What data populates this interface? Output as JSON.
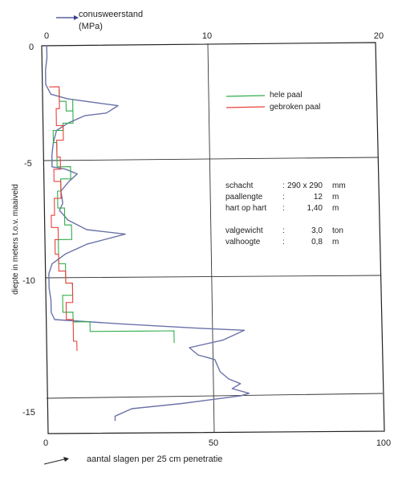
{
  "chart_data": {
    "type": "line",
    "top_axis": {
      "label_line1": "conusweerstand",
      "label_line2": "(MPa)",
      "ticks": [
        "0",
        "10",
        "20"
      ],
      "range": [
        0,
        20
      ]
    },
    "bottom_axis": {
      "label": "aantal slagen per 25 cm penetratie",
      "ticks": [
        "0",
        "50",
        "100"
      ],
      "range": [
        0,
        100
      ]
    },
    "y_axis": {
      "label": "diepte in meters t.o.v. maaiveld",
      "ticks": [
        "0",
        "-5",
        "-10",
        "-15"
      ],
      "range": [
        0,
        -16
      ]
    },
    "grid": true,
    "legend": {
      "position": "top-right",
      "entries": [
        {
          "label": "hele paal",
          "color": "#2fae4a"
        },
        {
          "label": "gebroken paal",
          "color": "#e8413c"
        }
      ]
    },
    "info_rows": [
      {
        "label": "schacht",
        "sep": ":",
        "value": "290 x 290",
        "unit": "mm"
      },
      {
        "label": "paallengte",
        "sep": ":",
        "value": "12",
        "unit": "m"
      },
      {
        "label": "hart op hart",
        "sep": ":",
        "value": "1,40",
        "unit": "m"
      },
      {
        "label": "valgewicht",
        "sep": ":",
        "value": "3,0",
        "unit": "ton"
      },
      {
        "label": "valhoogte",
        "sep": ":",
        "value": "0,8",
        "unit": "m"
      }
    ],
    "series": [
      {
        "axis": "top",
        "color": "#6a72a8",
        "points": [
          [
            0.3,
            0
          ],
          [
            0.3,
            -0.5
          ],
          [
            0.2,
            -1.0
          ],
          [
            0.2,
            -1.6
          ],
          [
            0.5,
            -2.0
          ],
          [
            1.5,
            -2.2
          ],
          [
            3.5,
            -2.4
          ],
          [
            4.5,
            -2.5
          ],
          [
            3.8,
            -2.8
          ],
          [
            2.5,
            -2.9
          ],
          [
            1.5,
            -3.2
          ],
          [
            0.8,
            -3.5
          ],
          [
            0.6,
            -4.0
          ],
          [
            0.5,
            -4.5
          ],
          [
            0.5,
            -5.0
          ],
          [
            1.3,
            -5.1
          ],
          [
            2.0,
            -5.3
          ],
          [
            1.5,
            -5.6
          ],
          [
            1.0,
            -6.0
          ],
          [
            1.1,
            -6.5
          ],
          [
            0.9,
            -6.8
          ],
          [
            1.4,
            -7.2
          ],
          [
            2.5,
            -7.6
          ],
          [
            4.8,
            -7.8
          ],
          [
            2.5,
            -8.2
          ],
          [
            1.2,
            -8.6
          ],
          [
            0.4,
            -9.0
          ],
          [
            0.2,
            -9.4
          ],
          [
            0.2,
            -10.0
          ],
          [
            0.3,
            -10.5
          ],
          [
            0.3,
            -11.0
          ],
          [
            0.5,
            -11.3
          ],
          [
            4.5,
            -11.5
          ],
          [
            9.0,
            -11.7
          ],
          [
            11.8,
            -11.8
          ],
          [
            10.5,
            -12.2
          ],
          [
            8.5,
            -12.5
          ],
          [
            9.0,
            -12.8
          ],
          [
            10.0,
            -13.0
          ],
          [
            10.3,
            -13.5
          ],
          [
            10.8,
            -13.8
          ],
          [
            11.5,
            -14.0
          ],
          [
            11.0,
            -14.2
          ],
          [
            12.0,
            -14.4
          ],
          [
            11.5,
            -14.5
          ],
          [
            8.0,
            -14.8
          ],
          [
            5.0,
            -15.0
          ],
          [
            4.0,
            -15.3
          ],
          [
            4.0,
            -15.5
          ]
        ]
      },
      {
        "axis": "bottom",
        "color": "#2fae4a",
        "points": [
          [
            5,
            -1.8
          ],
          [
            5,
            -2.3
          ],
          [
            7,
            -2.3
          ],
          [
            7,
            -2.7
          ],
          [
            9,
            -2.7
          ],
          [
            9,
            -2.2
          ],
          [
            9,
            -3.2
          ],
          [
            6,
            -3.2
          ],
          [
            6,
            -3.5
          ],
          [
            3,
            -3.5
          ],
          [
            3,
            -4.0
          ],
          [
            4,
            -4.0
          ],
          [
            4,
            -5.0
          ],
          [
            8,
            -5.0
          ],
          [
            8,
            -5.5
          ],
          [
            5,
            -5.5
          ],
          [
            5,
            -6.0
          ],
          [
            4,
            -6.0
          ],
          [
            4,
            -6.7
          ],
          [
            6,
            -6.7
          ],
          [
            6,
            -7.4
          ],
          [
            8,
            -7.4
          ],
          [
            8,
            -8.0
          ],
          [
            4,
            -8.0
          ],
          [
            4,
            -9.0
          ],
          [
            6,
            -9.0
          ],
          [
            6,
            -9.8
          ],
          [
            8,
            -9.8
          ],
          [
            8,
            -10.3
          ],
          [
            5,
            -10.3
          ],
          [
            5,
            -11.0
          ],
          [
            8,
            -11.0
          ],
          [
            8,
            -11.4
          ],
          [
            13,
            -11.4
          ],
          [
            13,
            -11.8
          ],
          [
            29,
            -11.8
          ],
          [
            38,
            -11.8
          ],
          [
            38,
            -12.3
          ]
        ]
      },
      {
        "axis": "bottom",
        "color": "#e8413c",
        "points": [
          [
            2,
            -1.7
          ],
          [
            5,
            -1.7
          ],
          [
            5,
            -2.6
          ],
          [
            4,
            -2.6
          ],
          [
            4,
            -3.3
          ],
          [
            6,
            -3.3
          ],
          [
            6,
            -3.9
          ],
          [
            4,
            -3.9
          ],
          [
            4,
            -4.6
          ],
          [
            5,
            -4.6
          ],
          [
            5,
            -5.1
          ],
          [
            3,
            -5.1
          ],
          [
            3,
            -5.6
          ],
          [
            5,
            -5.6
          ],
          [
            5,
            -6.3
          ],
          [
            3,
            -6.3
          ],
          [
            3,
            -7.0
          ],
          [
            2,
            -7.0
          ],
          [
            2,
            -7.5
          ],
          [
            4,
            -7.5
          ],
          [
            4,
            -8.0
          ],
          [
            3,
            -8.0
          ],
          [
            3,
            -8.6
          ],
          [
            4,
            -8.6
          ],
          [
            4,
            -9.3
          ],
          [
            6,
            -9.3
          ],
          [
            6,
            -9.8
          ],
          [
            8,
            -9.8
          ],
          [
            8,
            -10.6
          ],
          [
            6,
            -10.6
          ],
          [
            6,
            -11.3
          ],
          [
            8,
            -11.3
          ],
          [
            8,
            -12.2
          ],
          [
            9,
            -12.2
          ],
          [
            9,
            -12.6
          ]
        ]
      }
    ]
  }
}
